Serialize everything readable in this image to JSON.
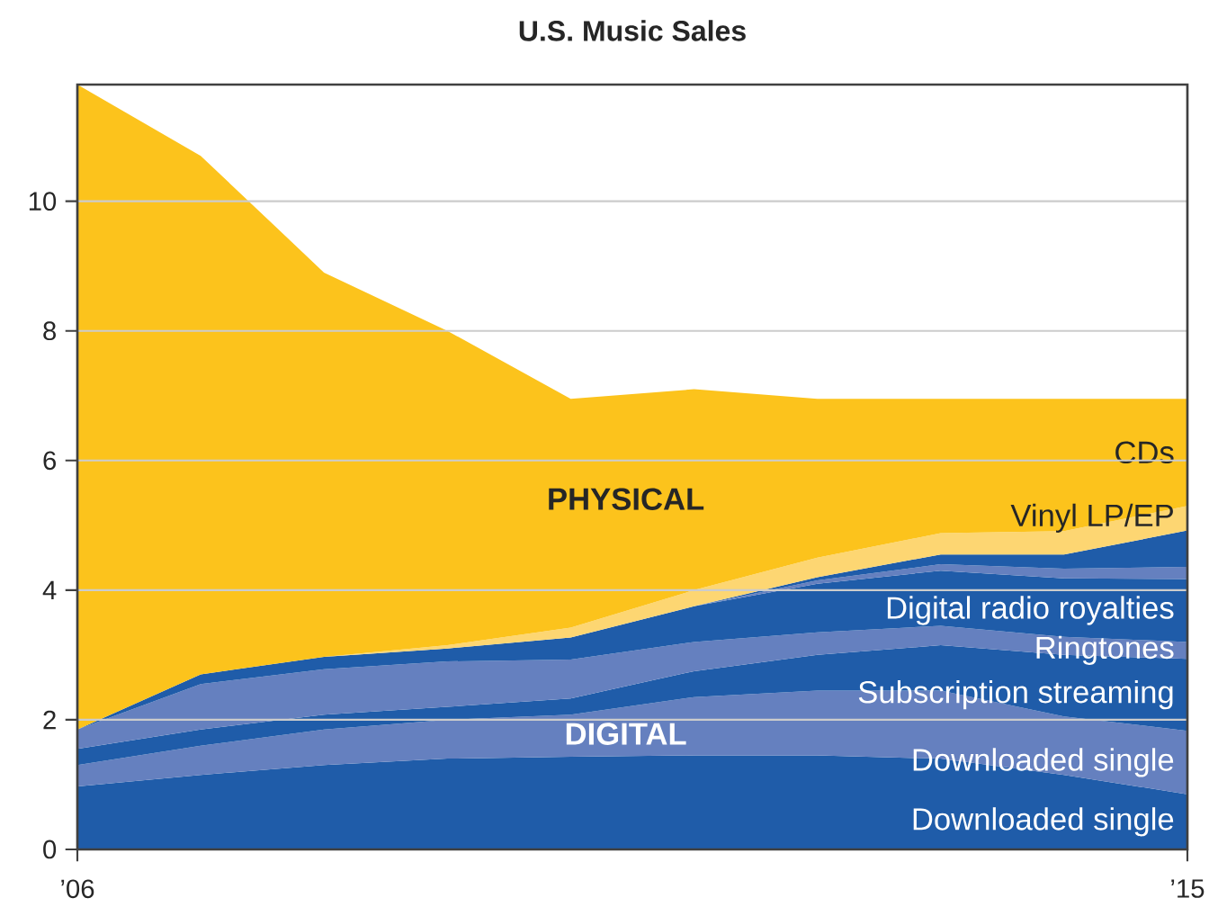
{
  "chart_data": {
    "type": "area",
    "stacked": true,
    "title": "U.S. Music Sales",
    "x": [
      2006,
      2007,
      2008,
      2009,
      2010,
      2011,
      2012,
      2013,
      2014,
      2015
    ],
    "xlim": [
      2006,
      2015
    ],
    "xticks": [
      {
        "value": 2006,
        "label": "’06"
      },
      {
        "value": 2015,
        "label": "’15"
      }
    ],
    "ylim": [
      0,
      11.8
    ],
    "yticks": [
      0,
      2,
      4,
      6,
      8,
      10
    ],
    "grid": "y",
    "series": [
      {
        "name": "Downloaded single",
        "color": "#1f5ca9",
        "values": [
          0.97,
          1.15,
          1.3,
          1.4,
          1.43,
          1.45,
          1.45,
          1.4,
          1.15,
          0.85
        ]
      },
      {
        "name": "Downloaded single",
        "color": "#6580bf",
        "values": [
          0.33,
          0.45,
          0.55,
          0.6,
          0.65,
          0.9,
          1.0,
          1.05,
          0.9,
          0.98
        ]
      },
      {
        "name": "Subscription streaming",
        "color": "#1f5ca9",
        "values": [
          0.25,
          0.25,
          0.23,
          0.2,
          0.25,
          0.4,
          0.55,
          0.7,
          0.95,
          1.11
        ]
      },
      {
        "name": "Ringtones",
        "color": "#6580bf",
        "values": [
          0.3,
          0.7,
          0.7,
          0.7,
          0.6,
          0.45,
          0.35,
          0.3,
          0.28,
          0.26
        ]
      },
      {
        "name": "Digital radio royalties",
        "color": "#1f5ca9",
        "values": [
          0,
          0.15,
          0.19,
          0.2,
          0.34,
          0.55,
          0.75,
          0.85,
          0.9,
          0.97
        ]
      },
      {
        "color": "#6580bf",
        "values": [
          null,
          null,
          null,
          null,
          null,
          0,
          0.05,
          0.1,
          0.15,
          0.19
        ]
      },
      {
        "color": "#1f5ca9",
        "values": [
          null,
          null,
          null,
          null,
          null,
          0,
          0.05,
          0.15,
          0.22,
          0.56
        ]
      },
      {
        "name": "Vinyl LP/EP",
        "color": "#fdd672",
        "values": [
          null,
          null,
          0,
          0.05,
          0.15,
          0.25,
          0.3,
          0.33,
          0.36,
          0.38
        ]
      },
      {
        "name": "CDs",
        "color": "#fcc31c",
        "values": [
          9.95,
          8.0,
          5.93,
          4.85,
          3.53,
          3.1,
          2.45,
          2.07,
          2.04,
          1.65
        ]
      }
    ],
    "annotations": [
      "PHYSICAL",
      "DIGITAL"
    ]
  }
}
